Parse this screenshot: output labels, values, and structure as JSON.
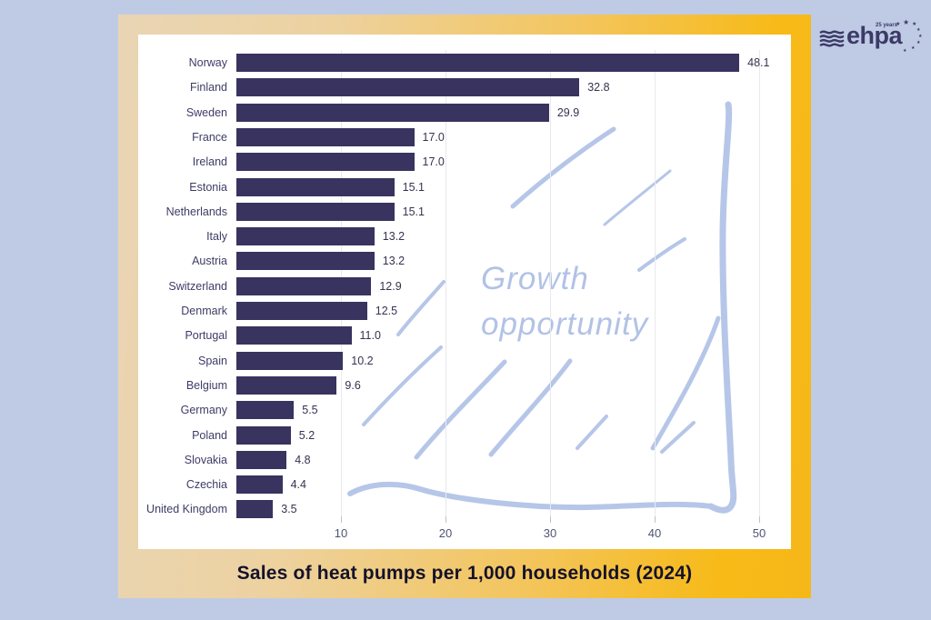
{
  "page": {
    "background": "#bfcbe5"
  },
  "logo": {
    "brand": "ehpa",
    "anniversary": "25 years"
  },
  "annotation": {
    "line1": "Growth",
    "line2": "opportunity",
    "color": "#b6c6e8"
  },
  "chart_data": {
    "type": "bar",
    "orientation": "horizontal",
    "title": "Sales of heat pumps per 1,000 households (2024)",
    "categories": [
      "Norway",
      "Finland",
      "Sweden",
      "France",
      "Ireland",
      "Estonia",
      "Netherlands",
      "Italy",
      "Austria",
      "Switzerland",
      "Denmark",
      "Portugal",
      "Spain",
      "Belgium",
      "Germany",
      "Poland",
      "Slovakia",
      "Czechia",
      "United Kingdom"
    ],
    "values": [
      48.1,
      32.8,
      29.9,
      17.0,
      17.0,
      15.1,
      15.1,
      13.2,
      13.2,
      12.9,
      12.5,
      11.0,
      10.2,
      9.6,
      5.5,
      5.2,
      4.8,
      4.4,
      3.5
    ],
    "value_labels": [
      "48.1",
      "32.8",
      "29.9",
      "17.0",
      "17.0",
      "15.1",
      "15.1",
      "13.2",
      "13.2",
      "12.9",
      "12.5",
      "11.0",
      "10.2",
      "9.6",
      "5.5",
      "5.2",
      "4.8",
      "4.4",
      "3.5"
    ],
    "x_ticks": [
      10,
      20,
      30,
      40,
      50
    ],
    "xlim": [
      0,
      52.2
    ],
    "grid": true,
    "legend": false,
    "bar_color": "#39335f",
    "gridline_color": "#e9e9ee",
    "tick_label_color": "#4d5470",
    "annotation_text": "Growth opportunity"
  }
}
